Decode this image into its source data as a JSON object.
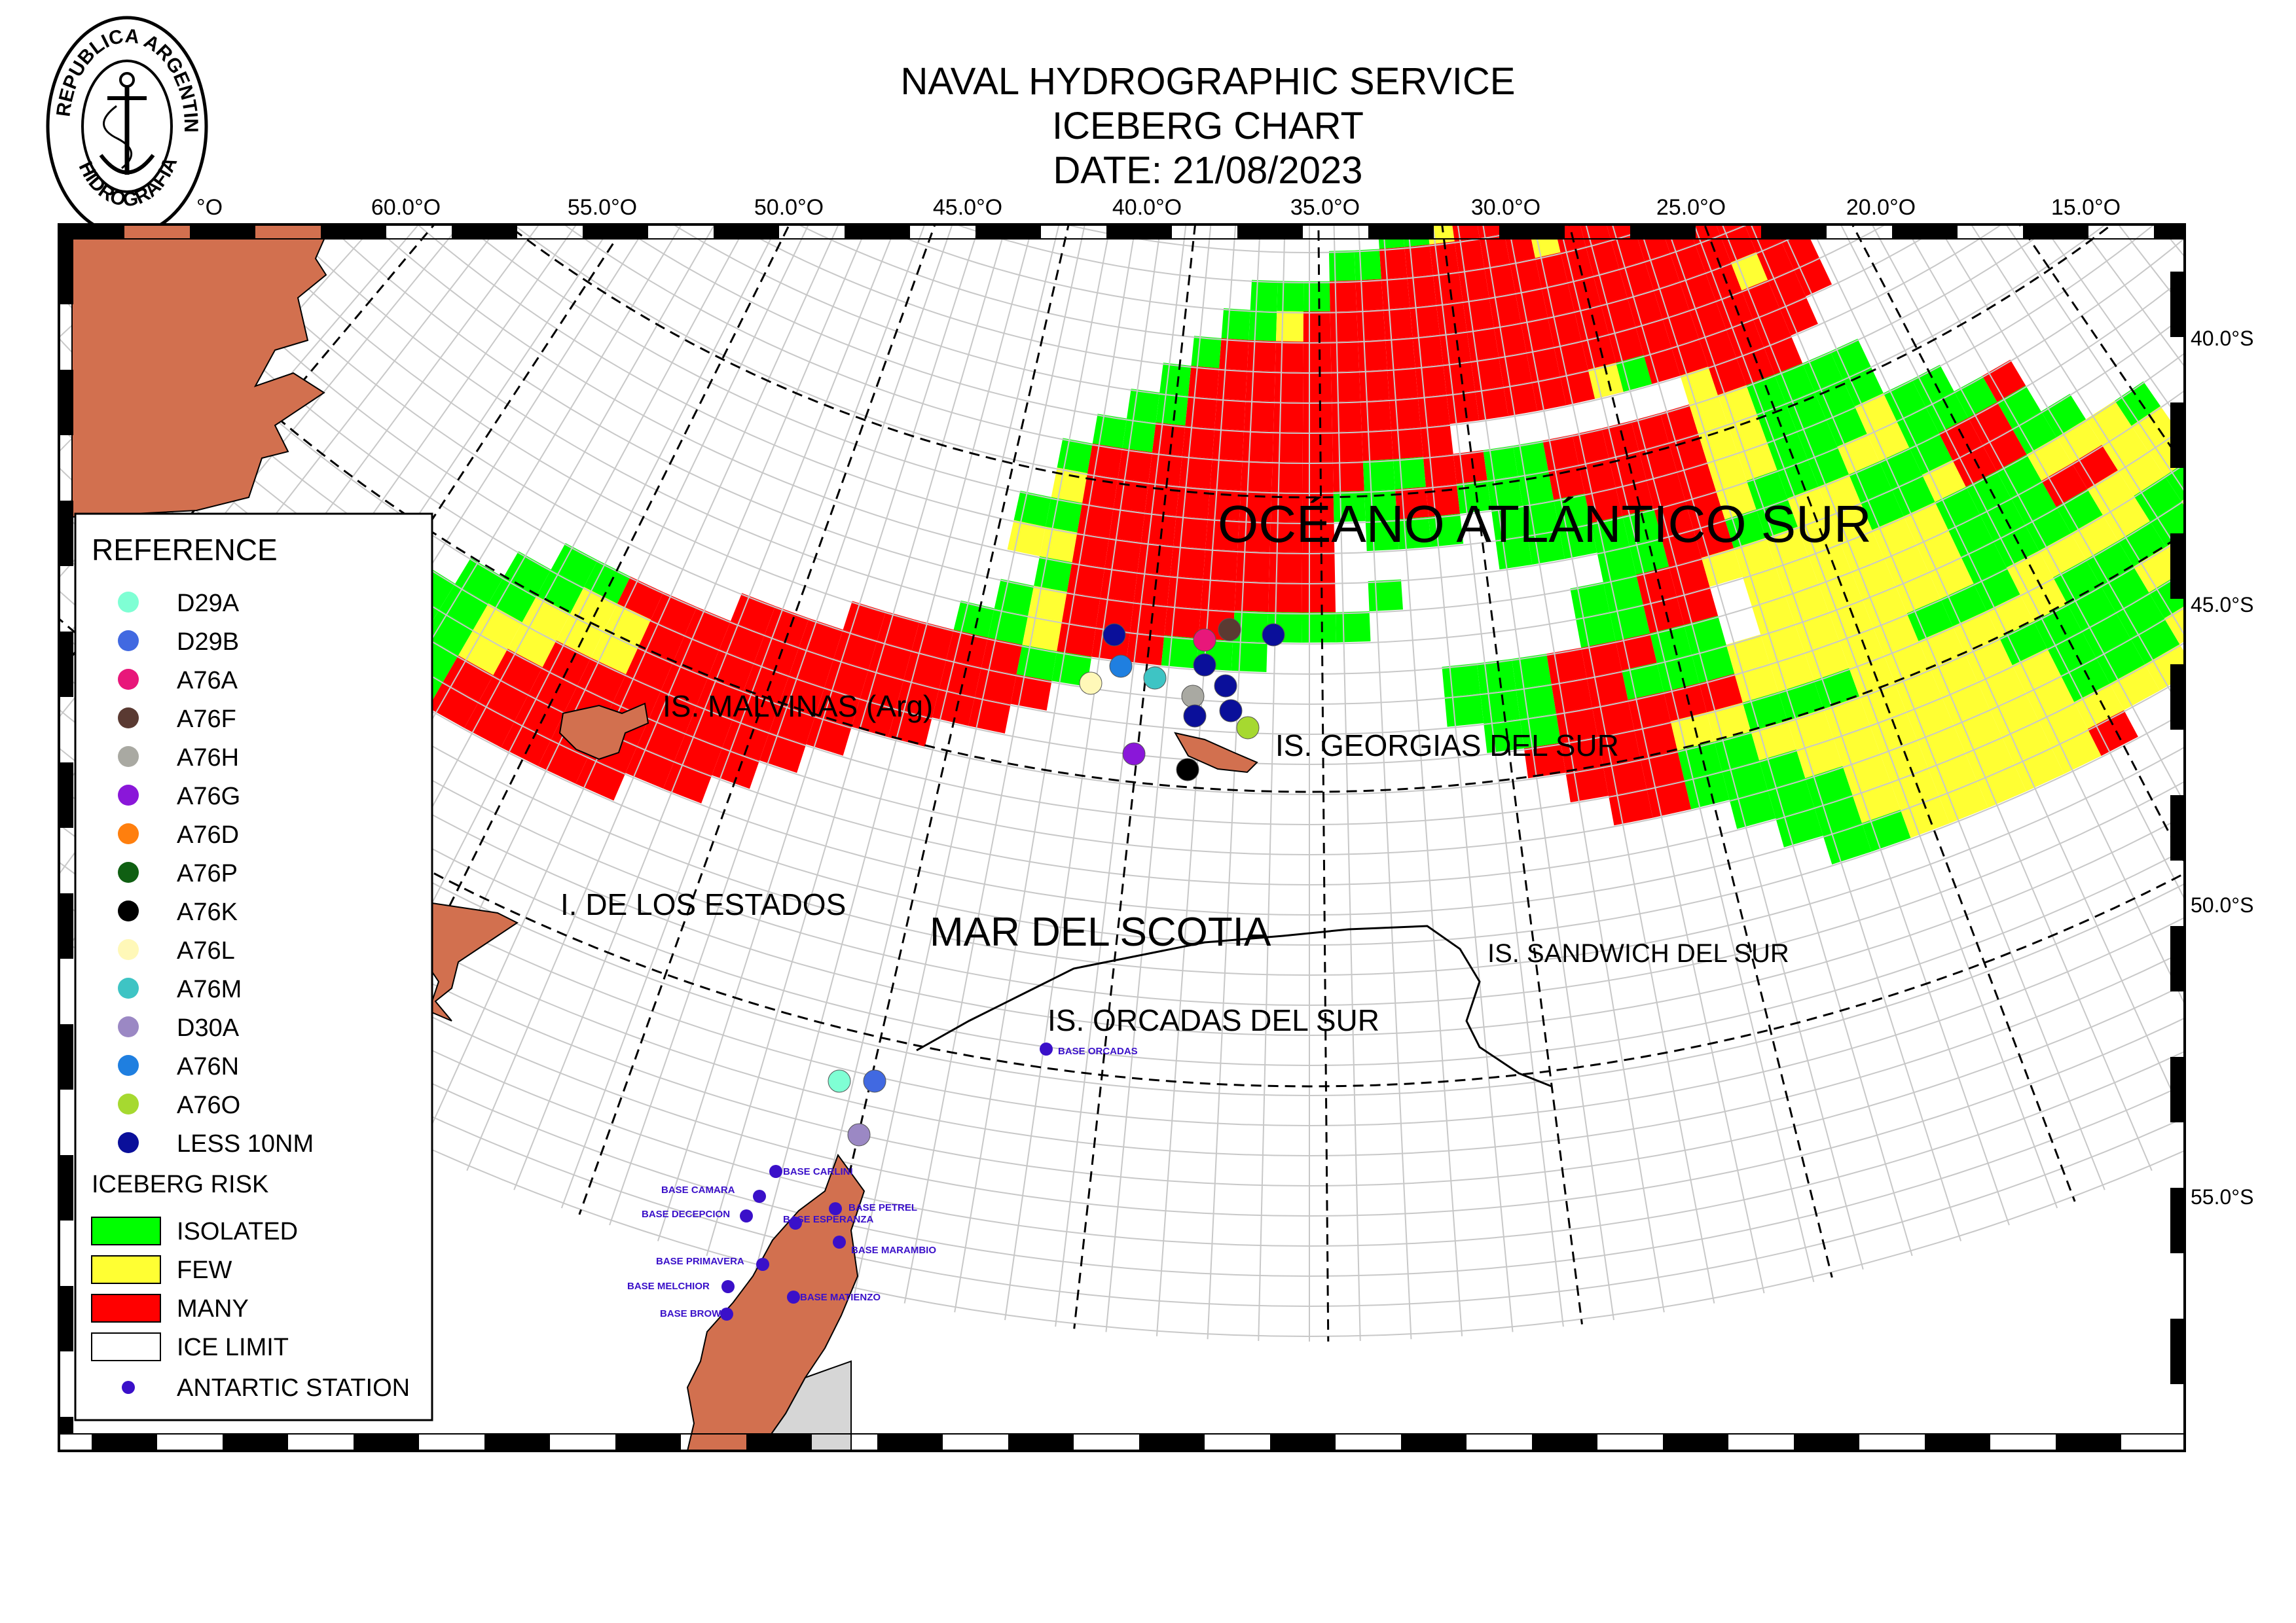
{
  "header": {
    "line1": "NAVAL HYDROGRAPHIC SERVICE",
    "line2": "ICEBERG CHART",
    "line3": "DATE: 21/08/2023",
    "seal_text": "REPUBLICA ARGENTINA HIDROGRAFIA"
  },
  "map": {
    "top_axis_labels": [
      "°O",
      "60.0°O",
      "55.0°O",
      "50.0°O",
      "45.0°O",
      "40.0°O",
      "35.0°O",
      "30.0°O",
      "25.0°O",
      "20.0°O",
      "15.0°O"
    ],
    "right_axis_labels": [
      "40.0°S",
      "45.0°S",
      "50.0°S",
      "55.0°S"
    ],
    "places": {
      "atlantic": "OCÉANO ATLÁNTICO SUR",
      "malvinas": "IS. MALVINAS (Arg)",
      "georgias": "IS. GEORGIAS DEL SUR",
      "estados": "I. DE LOS ESTADOS",
      "scotia": "MAR DEL SCOTIA",
      "sandwich": "IS. SANDWICH DEL SUR",
      "orcadas": "IS. ORCADAS DEL SUR"
    },
    "stations": [
      {
        "name": "BASE ORCADAS"
      },
      {
        "name": "BASE CARLINI"
      },
      {
        "name": "BASE CAMARA"
      },
      {
        "name": "BASE DECEPCION"
      },
      {
        "name": "BASE PETREL"
      },
      {
        "name": "BASE ESPERANZA"
      },
      {
        "name": "BASE MARAMBIO"
      },
      {
        "name": "BASE PRIMAVERA"
      },
      {
        "name": "BASE MELCHIOR"
      },
      {
        "name": "BASE MATIENZO"
      },
      {
        "name": "BASE BROWN"
      }
    ]
  },
  "legend": {
    "title": "REFERENCE",
    "icebergs": [
      {
        "label": "D29A",
        "color": "#7fffd4"
      },
      {
        "label": "D29B",
        "color": "#4169e1"
      },
      {
        "label": "A76A",
        "color": "#e8177a"
      },
      {
        "label": "A76F",
        "color": "#5a3a32"
      },
      {
        "label": "A76H",
        "color": "#a9a9a2"
      },
      {
        "label": "A76G",
        "color": "#8a17d9"
      },
      {
        "label": "A76D",
        "color": "#ff7f0e"
      },
      {
        "label": "A76P",
        "color": "#0f5f12"
      },
      {
        "label": "A76K",
        "color": "#000000"
      },
      {
        "label": "A76L",
        "color": "#fff8b8"
      },
      {
        "label": "A76M",
        "color": "#3ec4c4"
      },
      {
        "label": "D30A",
        "color": "#9b88c4"
      },
      {
        "label": "A76N",
        "color": "#1f7fe0"
      },
      {
        "label": "A76O",
        "color": "#a6d930"
      },
      {
        "label": "LESS 10NM",
        "color": "#0a0f9a"
      }
    ],
    "risk_title": "ICEBERG RISK",
    "risk": [
      {
        "label": "ISOLATED",
        "color": "#00ff00"
      },
      {
        "label": "FEW",
        "color": "#ffff33"
      },
      {
        "label": "MANY",
        "color": "#ff0000"
      },
      {
        "label": "ICE LIMIT",
        "color": "#ffffff"
      }
    ],
    "station_label": "ANTARTIC STATION",
    "station_color": "#3a10c9"
  },
  "colors": {
    "land": "#d2704f",
    "antarctic_ice": "#d6d6d6"
  }
}
